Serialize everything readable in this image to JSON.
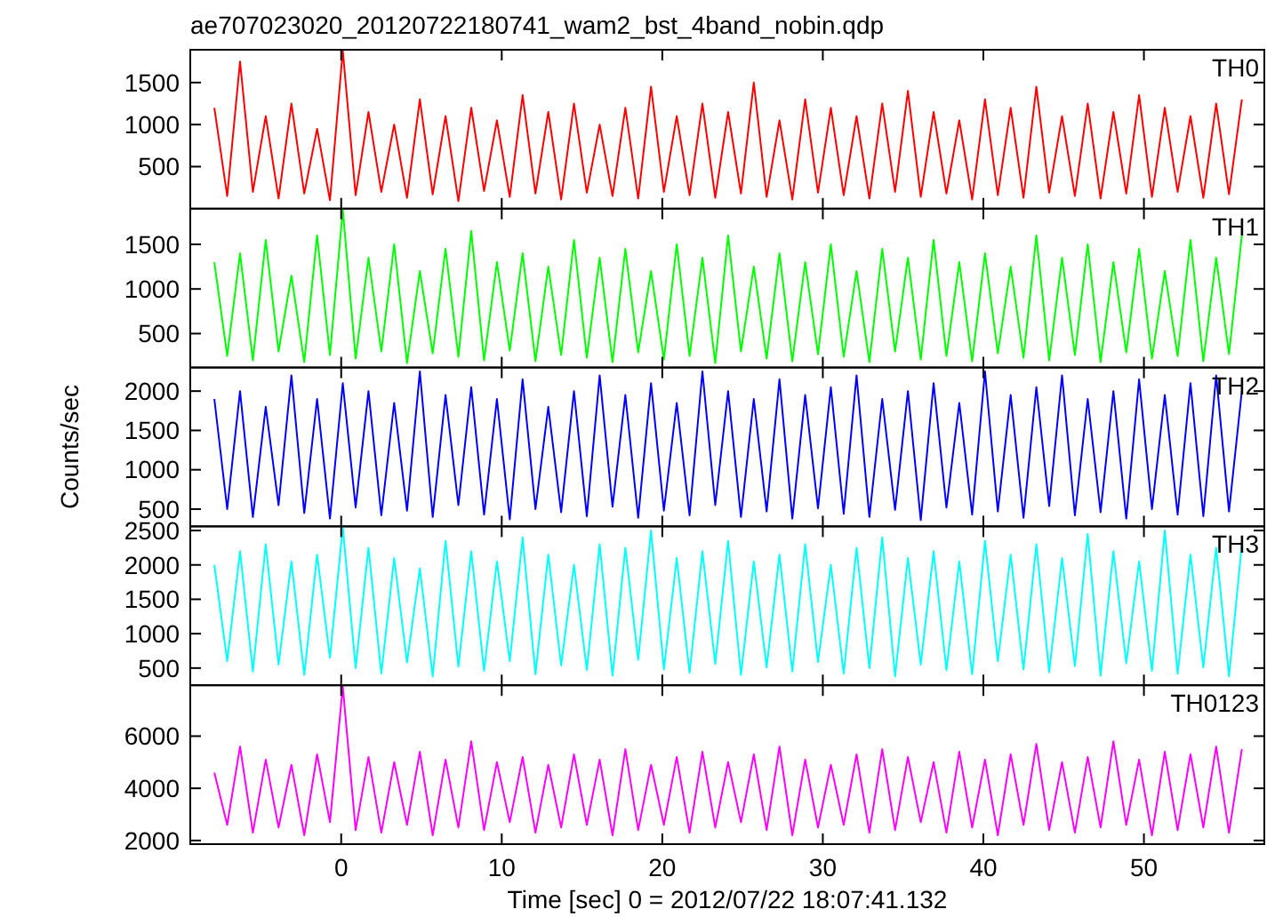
{
  "chart_data": [
    {
      "type": "line",
      "title": "ae707023020_20120722180741_wam2_bst_4band_nobin.qdp",
      "annotations": [
        "TH0"
      ],
      "tick_labels": "y",
      "xlim": [
        -9.4,
        57.5
      ],
      "xticks": [
        0,
        10,
        20,
        30,
        40,
        50
      ],
      "ylim": [
        0,
        1890
      ],
      "yticks": [
        500,
        1000,
        1500
      ],
      "x": [
        -7.9,
        -7.1,
        -6.3,
        -5.5,
        -4.7,
        -3.9,
        -3.1,
        -2.3,
        -1.5,
        -0.7,
        0.1,
        0.9,
        1.7,
        2.5,
        3.3,
        4.1,
        4.9,
        5.7,
        6.5,
        7.3,
        8.1,
        8.9,
        9.7,
        10.5,
        11.3,
        12.1,
        12.9,
        13.7,
        14.5,
        15.3,
        16.1,
        16.9,
        17.7,
        18.5,
        19.3,
        20.1,
        20.9,
        21.7,
        22.5,
        23.3,
        24.1,
        24.9,
        25.7,
        26.5,
        27.3,
        28.1,
        28.9,
        29.7,
        30.5,
        31.3,
        32.1,
        32.9,
        33.7,
        34.5,
        35.3,
        36.1,
        36.9,
        37.7,
        38.5,
        39.3,
        40.1,
        40.9,
        41.7,
        42.5,
        43.3,
        44.1,
        44.9,
        45.7,
        46.5,
        47.3,
        48.1,
        48.9,
        49.7,
        50.5,
        51.3,
        52.1,
        52.9,
        53.7,
        54.5,
        55.3,
        56.1
      ],
      "series": [
        {
          "color": "#ff0000",
          "values": [
            1200,
            150,
            1750,
            200,
            1100,
            120,
            1250,
            180,
            950,
            100,
            1880,
            160,
            1150,
            200,
            1000,
            130,
            1300,
            170,
            1100,
            90,
            1200,
            210,
            1050,
            140,
            1350,
            180,
            1150,
            110,
            1250,
            190,
            1000,
            150,
            1200,
            120,
            1450,
            200,
            1100,
            160,
            1250,
            130,
            1150,
            180,
            1500,
            140,
            1050,
            110,
            1300,
            190,
            1200,
            160,
            1100,
            120,
            1250,
            200,
            1400,
            140,
            1150,
            180,
            1050,
            110,
            1300,
            160,
            1200,
            130,
            1450,
            190,
            1100,
            150,
            1250,
            120,
            1150,
            180,
            1350,
            140,
            1200,
            200,
            1100,
            130,
            1250,
            170,
            1300
          ]
        }
      ]
    },
    {
      "type": "line",
      "annotations": [
        "TH1"
      ],
      "tick_labels": "y",
      "xlim": [
        -9.4,
        57.5
      ],
      "xticks": [
        0,
        10,
        20,
        30,
        40,
        50
      ],
      "ylim": [
        120,
        1900
      ],
      "yticks": [
        500,
        1000,
        1500
      ],
      "x": [
        -7.9,
        -7.1,
        -6.3,
        -5.5,
        -4.7,
        -3.9,
        -3.1,
        -2.3,
        -1.5,
        -0.7,
        0.1,
        0.9,
        1.7,
        2.5,
        3.3,
        4.1,
        4.9,
        5.7,
        6.5,
        7.3,
        8.1,
        8.9,
        9.7,
        10.5,
        11.3,
        12.1,
        12.9,
        13.7,
        14.5,
        15.3,
        16.1,
        16.9,
        17.7,
        18.5,
        19.3,
        20.1,
        20.9,
        21.7,
        22.5,
        23.3,
        24.1,
        24.9,
        25.7,
        26.5,
        27.3,
        28.1,
        28.9,
        29.7,
        30.5,
        31.3,
        32.1,
        32.9,
        33.7,
        34.5,
        35.3,
        36.1,
        36.9,
        37.7,
        38.5,
        39.3,
        40.1,
        40.9,
        41.7,
        42.5,
        43.3,
        44.1,
        44.9,
        45.7,
        46.5,
        47.3,
        48.1,
        48.9,
        49.7,
        50.5,
        51.3,
        52.1,
        52.9,
        53.7,
        54.5,
        55.3,
        56.1
      ],
      "series": [
        {
          "color": "#00ff00",
          "values": [
            1300,
            250,
            1400,
            200,
            1550,
            300,
            1150,
            180,
            1600,
            260,
            1890,
            220,
            1350,
            300,
            1500,
            170,
            1200,
            280,
            1450,
            240,
            1650,
            200,
            1300,
            310,
            1400,
            190,
            1250,
            260,
            1550,
            230,
            1350,
            180,
            1450,
            290,
            1200,
            210,
            1500,
            250,
            1350,
            170,
            1600,
            300,
            1250,
            220,
            1400,
            190,
            1300,
            270,
            1500,
            240,
            1200,
            180,
            1450,
            300,
            1350,
            210,
            1550,
            250,
            1300,
            190,
            1400,
            280,
            1250,
            230,
            1600,
            200,
            1350,
            260,
            1500,
            180,
            1300,
            290,
            1450,
            220,
            1200,
            250,
            1550,
            190,
            1350,
            270,
            1600
          ]
        }
      ]
    },
    {
      "type": "line",
      "ylabel": "Counts/sec",
      "annotations": [
        "TH2"
      ],
      "tick_labels": "y",
      "xlim": [
        -9.4,
        57.5
      ],
      "xticks": [
        0,
        10,
        20,
        30,
        40,
        50
      ],
      "ylim": [
        280,
        2300
      ],
      "yticks": [
        500,
        1000,
        1500,
        2000
      ],
      "x": [
        -7.9,
        -7.1,
        -6.3,
        -5.5,
        -4.7,
        -3.9,
        -3.1,
        -2.3,
        -1.5,
        -0.7,
        0.1,
        0.9,
        1.7,
        2.5,
        3.3,
        4.1,
        4.9,
        5.7,
        6.5,
        7.3,
        8.1,
        8.9,
        9.7,
        10.5,
        11.3,
        12.1,
        12.9,
        13.7,
        14.5,
        15.3,
        16.1,
        16.9,
        17.7,
        18.5,
        19.3,
        20.1,
        20.9,
        21.7,
        22.5,
        23.3,
        24.1,
        24.9,
        25.7,
        26.5,
        27.3,
        28.1,
        28.9,
        29.7,
        30.5,
        31.3,
        32.1,
        32.9,
        33.7,
        34.5,
        35.3,
        36.1,
        36.9,
        37.7,
        38.5,
        39.3,
        40.1,
        40.9,
        41.7,
        42.5,
        43.3,
        44.1,
        44.9,
        45.7,
        46.5,
        47.3,
        48.1,
        48.9,
        49.7,
        50.5,
        51.3,
        52.1,
        52.9,
        53.7,
        54.5,
        55.3,
        56.1
      ],
      "series": [
        {
          "color": "#0000ff",
          "values": [
            1900,
            500,
            2000,
            400,
            1800,
            550,
            2200,
            450,
            1900,
            380,
            2100,
            520,
            2000,
            420,
            1850,
            480,
            2250,
            400,
            1950,
            550,
            2050,
            430,
            1900,
            370,
            2150,
            500,
            1800,
            460,
            2000,
            410,
            2200,
            530,
            1950,
            390,
            2100,
            480,
            1850,
            420,
            2250,
            550,
            2000,
            400,
            1900,
            470,
            2150,
            380,
            1950,
            510,
            2050,
            440,
            2200,
            400,
            1900,
            490,
            2000,
            360,
            2100,
            520,
            1850,
            430,
            2250,
            470,
            1950,
            390,
            2050,
            540,
            2200,
            420,
            1900,
            460,
            2000,
            380,
            2150,
            500,
            1950,
            430,
            2100,
            410,
            2200,
            470,
            2000
          ]
        }
      ]
    },
    {
      "type": "line",
      "annotations": [
        "TH3"
      ],
      "tick_labels": "y",
      "xlim": [
        -9.4,
        57.5
      ],
      "xticks": [
        0,
        10,
        20,
        30,
        40,
        50
      ],
      "ylim": [
        250,
        2560
      ],
      "yticks": [
        500,
        1000,
        1500,
        2000,
        2500
      ],
      "x": [
        -7.9,
        -7.1,
        -6.3,
        -5.5,
        -4.7,
        -3.9,
        -3.1,
        -2.3,
        -1.5,
        -0.7,
        0.1,
        0.9,
        1.7,
        2.5,
        3.3,
        4.1,
        4.9,
        5.7,
        6.5,
        7.3,
        8.1,
        8.9,
        9.7,
        10.5,
        11.3,
        12.1,
        12.9,
        13.7,
        14.5,
        15.3,
        16.1,
        16.9,
        17.7,
        18.5,
        19.3,
        20.1,
        20.9,
        21.7,
        22.5,
        23.3,
        24.1,
        24.9,
        25.7,
        26.5,
        27.3,
        28.1,
        28.9,
        29.7,
        30.5,
        31.3,
        32.1,
        32.9,
        33.7,
        34.5,
        35.3,
        36.1,
        36.9,
        37.7,
        38.5,
        39.3,
        40.1,
        40.9,
        41.7,
        42.5,
        43.3,
        44.1,
        44.9,
        45.7,
        46.5,
        47.3,
        48.1,
        48.9,
        49.7,
        50.5,
        51.3,
        52.1,
        52.9,
        53.7,
        54.5,
        55.3,
        56.1
      ],
      "series": [
        {
          "color": "#00ffff",
          "values": [
            2000,
            600,
            2200,
            450,
            2300,
            550,
            2050,
            400,
            2150,
            650,
            2550,
            500,
            2250,
            420,
            2100,
            580,
            1950,
            380,
            2350,
            520,
            2200,
            460,
            2050,
            600,
            2400,
            410,
            2150,
            540,
            2000,
            470,
            2300,
            390,
            2250,
            620,
            2500,
            480,
            2100,
            430,
            2200,
            560,
            2350,
            400,
            2050,
            510,
            2150,
            450,
            2300,
            590,
            2000,
            420,
            2250,
            500,
            2400,
            380,
            2100,
            550,
            2200,
            470,
            2050,
            410,
            2350,
            600,
            2150,
            480,
            2300,
            440,
            2100,
            530,
            2450,
            390,
            2200,
            570,
            2050,
            460,
            2500,
            420,
            2150,
            510,
            2250,
            380,
            2300
          ]
        }
      ]
    },
    {
      "type": "line",
      "xlabel": "Time [sec] 0 = 2012/07/22 18:07:41.132",
      "annotations": [
        "TH0123"
      ],
      "xlim": [
        -9.4,
        57.5
      ],
      "xticks": [
        0,
        10,
        20,
        30,
        40,
        50
      ],
      "ylim": [
        1860,
        7950
      ],
      "yticks": [
        2000,
        4000,
        6000
      ],
      "x": [
        -7.9,
        -7.1,
        -6.3,
        -5.5,
        -4.7,
        -3.9,
        -3.1,
        -2.3,
        -1.5,
        -0.7,
        0.1,
        0.9,
        1.7,
        2.5,
        3.3,
        4.1,
        4.9,
        5.7,
        6.5,
        7.3,
        8.1,
        8.9,
        9.7,
        10.5,
        11.3,
        12.1,
        12.9,
        13.7,
        14.5,
        15.3,
        16.1,
        16.9,
        17.7,
        18.5,
        19.3,
        20.1,
        20.9,
        21.7,
        22.5,
        23.3,
        24.1,
        24.9,
        25.7,
        26.5,
        27.3,
        28.1,
        28.9,
        29.7,
        30.5,
        31.3,
        32.1,
        32.9,
        33.7,
        34.5,
        35.3,
        36.1,
        36.9,
        37.7,
        38.5,
        39.3,
        40.1,
        40.9,
        41.7,
        42.5,
        43.3,
        44.1,
        44.9,
        45.7,
        46.5,
        47.3,
        48.1,
        48.9,
        49.7,
        50.5,
        51.3,
        52.1,
        52.9,
        53.7,
        54.5,
        55.3,
        56.1
      ],
      "series": [
        {
          "color": "#ff00ff",
          "values": [
            4600,
            2600,
            5600,
            2300,
            5100,
            2500,
            4900,
            2200,
            5300,
            2700,
            7900,
            2400,
            5200,
            2300,
            5000,
            2600,
            5400,
            2200,
            5100,
            2500,
            5800,
            2400,
            5000,
            2700,
            5200,
            2300,
            4900,
            2500,
            5300,
            2600,
            5100,
            2200,
            5500,
            2400,
            4900,
            2600,
            5200,
            2300,
            5400,
            2500,
            5000,
            2700,
            5300,
            2400,
            5600,
            2200,
            5100,
            2500,
            4900,
            2600,
            5300,
            2300,
            5500,
            2400,
            5200,
            2700,
            5000,
            2300,
            5400,
            2500,
            5100,
            2200,
            5300,
            2600,
            5700,
            2400,
            5000,
            2300,
            5200,
            2500,
            5800,
            2600,
            5100,
            2200,
            5400,
            2400,
            5300,
            2500,
            5600,
            2300,
            5500
          ]
        }
      ]
    }
  ]
}
